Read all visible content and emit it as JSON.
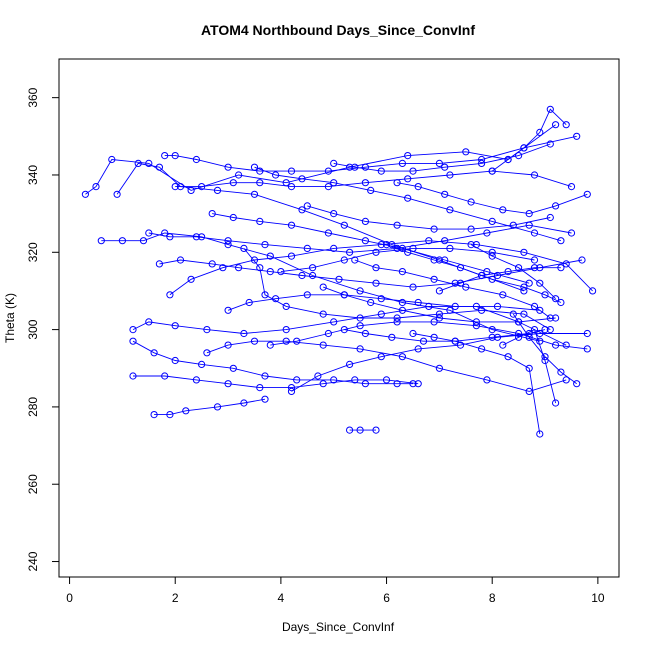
{
  "chart_data": {
    "type": "line",
    "title": "ATOM4 Northbound Days_Since_ConvInf",
    "xlabel": "Days_Since_ConvInf",
    "ylabel": "Theta (K)",
    "xlim": [
      -0.2,
      10.4
    ],
    "ylim": [
      236,
      370
    ],
    "x_ticks": [
      0,
      2,
      4,
      6,
      8,
      10
    ],
    "y_ticks": [
      240,
      260,
      280,
      300,
      320,
      340,
      360
    ],
    "x_tick_labels": [
      "0",
      "2",
      "4",
      "6",
      "8",
      "10"
    ],
    "y_tick_labels": [
      "240",
      "260",
      "280",
      "300",
      "320",
      "340",
      "360"
    ],
    "grid": false,
    "legend": "none",
    "markers": "open-circle",
    "color": "#0000ff",
    "series": [
      {
        "x": [
          0.3,
          0.5,
          0.8,
          1.5,
          2.3,
          3.2,
          4.1,
          5.3,
          6.4,
          7.5,
          8.3,
          9.2
        ],
        "y": [
          335,
          337,
          344,
          343,
          336,
          340,
          338,
          342,
          345,
          346,
          344,
          353
        ]
      },
      {
        "x": [
          0.6,
          1.0,
          1.4,
          1.8,
          2.5,
          3.0,
          3.8,
          4.6,
          5.5,
          6.3,
          7.2,
          8.0,
          8.9
        ],
        "y": [
          323,
          323,
          323,
          325,
          324,
          322,
          319,
          314,
          310,
          307,
          305,
          300,
          297
        ]
      },
      {
        "x": [
          0.9,
          1.3,
          1.7,
          2.1,
          2.8,
          3.5,
          4.4,
          5.2,
          6.1,
          7.0,
          7.8,
          8.6
        ],
        "y": [
          335,
          343,
          342,
          337,
          336,
          335,
          331,
          327,
          322,
          318,
          314,
          310
        ]
      },
      {
        "x": [
          1.2,
          1.5,
          2.0,
          2.6,
          3.3,
          4.1,
          5.0,
          5.9,
          6.8,
          7.7,
          8.5,
          9.4
        ],
        "y": [
          300,
          302,
          301,
          300,
          299,
          300,
          302,
          304,
          306,
          306,
          302,
          296
        ]
      },
      {
        "x": [
          1.2,
          1.6,
          2.0,
          2.5,
          3.1,
          3.7,
          4.3,
          5.0,
          5.6,
          6.2,
          6.5
        ],
        "y": [
          297,
          294,
          292,
          291,
          290,
          288,
          287,
          287,
          286,
          286,
          286
        ]
      },
      {
        "x": [
          1.2,
          1.8,
          2.4,
          3.0,
          3.6,
          4.2,
          4.8,
          5.4,
          6.0,
          6.6
        ],
        "y": [
          288,
          288,
          287,
          286,
          285,
          285,
          286,
          287,
          287,
          286
        ]
      },
      {
        "x": [
          1.6,
          1.9,
          2.2,
          2.8,
          3.3,
          3.7
        ],
        "y": [
          278,
          278,
          279,
          280,
          281,
          282
        ]
      },
      {
        "x": [
          1.8,
          2.0,
          2.4,
          3.0,
          3.6,
          4.2,
          4.9,
          5.6,
          6.3,
          7.0,
          7.8,
          8.6,
          9.6
        ],
        "y": [
          345,
          345,
          344,
          342,
          341,
          341,
          341,
          342,
          343,
          343,
          344,
          347,
          350
        ]
      },
      {
        "x": [
          1.9,
          2.3,
          2.9,
          3.5,
          4.2,
          5.0,
          5.9,
          6.8,
          7.7,
          8.6,
          9.4,
          9.9
        ],
        "y": [
          309,
          313,
          316,
          318,
          319,
          321,
          322,
          323,
          322,
          320,
          317,
          310
        ]
      },
      {
        "x": [
          1.5,
          1.9,
          2.4,
          3.0,
          3.7,
          4.5,
          5.3,
          6.2,
          7.1,
          7.9,
          8.7,
          9.5
        ],
        "y": [
          325,
          324,
          324,
          323,
          322,
          321,
          320,
          321,
          323,
          325,
          327,
          325
        ]
      },
      {
        "x": [
          1.7,
          2.1,
          2.7,
          3.2,
          3.8,
          4.4,
          5.1,
          5.8,
          6.5,
          7.3,
          8.1,
          8.9,
          9.7
        ],
        "y": [
          317,
          318,
          317,
          316,
          315,
          314,
          313,
          312,
          311,
          312,
          314,
          316,
          318
        ]
      },
      {
        "x": [
          2.0,
          2.5,
          3.1,
          3.6,
          4.2,
          4.9,
          5.6,
          6.4,
          7.2,
          8.0,
          8.8,
          9.5
        ],
        "y": [
          337,
          337,
          338,
          338,
          337,
          337,
          338,
          339,
          340,
          341,
          340,
          337
        ]
      },
      {
        "x": [
          2.6,
          3.0,
          3.5,
          4.1,
          4.8,
          5.5,
          6.3,
          7.0,
          7.9,
          8.7,
          9.4
        ],
        "y": [
          294,
          296,
          297,
          297,
          296,
          295,
          293,
          290,
          287,
          284,
          287
        ]
      },
      {
        "x": [
          2.7,
          3.1,
          3.6,
          4.2,
          4.9,
          5.6,
          6.3,
          7.1,
          7.9,
          8.7
        ],
        "y": [
          330,
          329,
          328,
          327,
          325,
          323,
          321,
          318,
          315,
          312
        ]
      },
      {
        "x": [
          3.0,
          3.4,
          3.9,
          4.5,
          5.2,
          5.9,
          6.6,
          7.3,
          8.1,
          8.9
        ],
        "y": [
          305,
          307,
          308,
          309,
          309,
          308,
          307,
          306,
          306,
          305
        ]
      },
      {
        "x": [
          3.3,
          3.6,
          3.7,
          4.1,
          4.8,
          5.5,
          6.2,
          7.0,
          7.8,
          8.6,
          9.1
        ],
        "y": [
          321,
          316,
          309,
          306,
          304,
          303,
          303,
          304,
          305,
          304,
          300
        ]
      },
      {
        "x": [
          3.5,
          3.9,
          4.4,
          5.0,
          5.7,
          6.4,
          7.2,
          8.0,
          8.8,
          9.3
        ],
        "y": [
          342,
          340,
          339,
          338,
          336,
          334,
          331,
          328,
          325,
          323
        ]
      },
      {
        "x": [
          3.8,
          4.3,
          4.9,
          5.5,
          6.2,
          6.9,
          7.7,
          8.5,
          9.2,
          9.8
        ],
        "y": [
          296,
          297,
          299,
          301,
          302,
          302,
          301,
          299,
          296,
          295
        ]
      },
      {
        "x": [
          4.0,
          4.6,
          5.2,
          5.8,
          6.5,
          7.2,
          8.0,
          8.8
        ],
        "y": [
          315,
          316,
          318,
          320,
          321,
          321,
          320,
          318
        ]
      },
      {
        "x": [
          4.2,
          4.7,
          5.3,
          5.9,
          6.6,
          7.4,
          8.1,
          8.9,
          9.8
        ],
        "y": [
          284,
          288,
          291,
          293,
          295,
          296,
          298,
          299,
          299
        ]
      },
      {
        "x": [
          4.5,
          5.0,
          5.6,
          6.2,
          6.9,
          7.6,
          8.4,
          9.1
        ],
        "y": [
          332,
          330,
          328,
          327,
          326,
          326,
          327,
          329
        ]
      },
      {
        "x": [
          4.8,
          5.2,
          5.7,
          6.3,
          7.0,
          7.7,
          8.5,
          9.2
        ],
        "y": [
          311,
          309,
          307,
          305,
          303,
          302,
          302,
          303
        ]
      },
      {
        "x": [
          5.0,
          5.4,
          5.9,
          6.5,
          7.1,
          7.8,
          8.5,
          9.1
        ],
        "y": [
          343,
          342,
          341,
          341,
          342,
          343,
          345,
          348
        ]
      },
      {
        "x": [
          5.2,
          5.6,
          6.1,
          6.7,
          7.3,
          8.0,
          8.7,
          9.0
        ],
        "y": [
          300,
          299,
          298,
          297,
          297,
          298,
          299,
          300
        ]
      },
      {
        "x": [
          5.4,
          5.8,
          6.3,
          6.9,
          7.5,
          8.2,
          8.8,
          9.1
        ],
        "y": [
          318,
          316,
          315,
          313,
          311,
          309,
          306,
          303
        ]
      },
      {
        "x": [
          5.3,
          5.5,
          5.8
        ],
        "y": [
          274,
          274,
          274
        ]
      },
      {
        "x": [
          6.0,
          6.4,
          6.9,
          7.4,
          8.0,
          8.6,
          9.0,
          9.3
        ],
        "y": [
          322,
          320,
          318,
          316,
          313,
          311,
          309,
          307
        ]
      },
      {
        "x": [
          6.2,
          6.6,
          7.1,
          7.6,
          8.2,
          8.7,
          9.2,
          9.8
        ],
        "y": [
          338,
          337,
          335,
          333,
          331,
          330,
          332,
          335
        ]
      },
      {
        "x": [
          6.5,
          6.9,
          7.3,
          7.8,
          8.3,
          8.7,
          8.9
        ],
        "y": [
          299,
          298,
          297,
          295,
          293,
          290,
          273
        ]
      },
      {
        "x": [
          7.0,
          7.4,
          7.8,
          8.3,
          8.8,
          9.3
        ],
        "y": [
          310,
          312,
          314,
          315,
          316,
          316
        ]
      },
      {
        "x": [
          7.6,
          8.0,
          8.5,
          8.9,
          9.2
        ],
        "y": [
          322,
          319,
          316,
          312,
          308
        ]
      },
      {
        "x": [
          8.0,
          8.3,
          8.6,
          8.9,
          9.1,
          9.4
        ],
        "y": [
          341,
          344,
          347,
          351,
          357,
          353
        ]
      },
      {
        "x": [
          8.2,
          8.5,
          8.8,
          9.0,
          9.2
        ],
        "y": [
          296,
          298,
          300,
          292,
          281
        ]
      },
      {
        "x": [
          8.4,
          8.7,
          9.0,
          9.3,
          9.6
        ],
        "y": [
          304,
          298,
          293,
          289,
          286
        ]
      }
    ]
  }
}
